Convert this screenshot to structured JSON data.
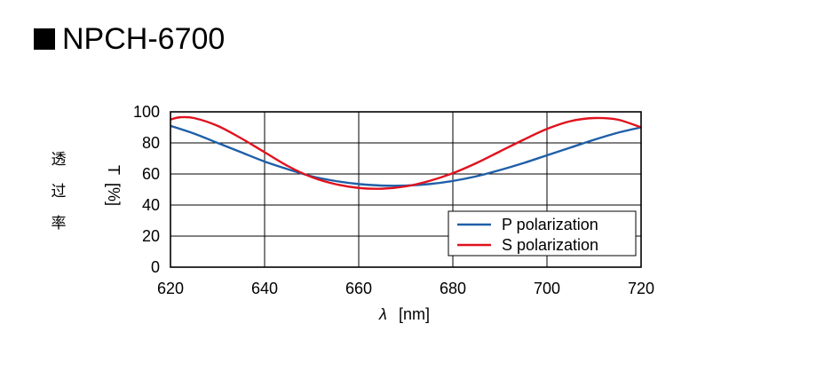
{
  "title": {
    "marker": "■",
    "text": "NPCH-6700"
  },
  "colors": {
    "p_polarization": "#1f5fa8",
    "s_polarization": "#e0121e",
    "grid": "#000000"
  },
  "chart_data": {
    "type": "line",
    "title": "NPCH-6700",
    "xlabel_symbol": "λ",
    "xlabel_unit": "[nm]",
    "ylabel_symbol": "T",
    "ylabel_unit": "[%]",
    "ylabel_jp": [
      "透",
      "过",
      "率"
    ],
    "xlim": [
      620,
      720
    ],
    "ylim": [
      0,
      100
    ],
    "xticks": [
      620,
      640,
      660,
      680,
      700,
      720
    ],
    "yticks": [
      0,
      20,
      40,
      60,
      80,
      100
    ],
    "grid": true,
    "legend_position": "bottom-right",
    "series": [
      {
        "name": "P polarization",
        "color": "#1f5fa8",
        "x": [
          620,
          625,
          630,
          635,
          640,
          645,
          650,
          655,
          660,
          665,
          670,
          675,
          680,
          685,
          690,
          695,
          700,
          705,
          710,
          715,
          720
        ],
        "y": [
          91,
          86,
          80,
          74,
          68,
          63,
          58.5,
          55.5,
          53.5,
          52.5,
          52.5,
          53.5,
          55.5,
          58.5,
          62.5,
          67,
          72,
          77,
          82,
          86.5,
          90
        ]
      },
      {
        "name": "S polarization",
        "color": "#e0121e",
        "x": [
          620,
          622,
          625,
          630,
          635,
          640,
          645,
          650,
          655,
          660,
          665,
          670,
          675,
          680,
          685,
          690,
          695,
          700,
          705,
          710,
          715,
          720
        ],
        "y": [
          95,
          96.5,
          96,
          91,
          83,
          74,
          65,
          58,
          53.5,
          51,
          50.5,
          52,
          55.5,
          60.5,
          67,
          74.5,
          82,
          89,
          94,
          96,
          95,
          90
        ]
      }
    ]
  }
}
